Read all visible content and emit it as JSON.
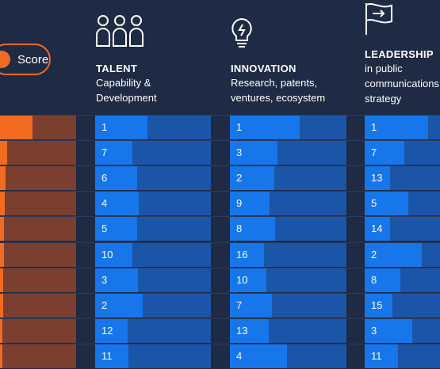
{
  "score": {
    "label": "Score"
  },
  "columns": [
    {
      "id": "talent",
      "icon": "people-group-icon",
      "title": "TALENT",
      "subtitle": [
        "Capability &",
        "Development"
      ]
    },
    {
      "id": "innovation",
      "icon": "lightbulb-icon",
      "title": "INNOVATION",
      "subtitle": [
        "Research, patents,",
        "ventures, ecosystem"
      ]
    },
    {
      "id": "leadership",
      "icon": "flag-icon",
      "title": "LEADERSHIP",
      "subtitle": [
        "in public",
        "communications",
        "strategy"
      ]
    }
  ],
  "rows": [
    {
      "score_fill": 0.43,
      "ranks": [
        "1",
        "1",
        "1"
      ],
      "bars": [
        0.45,
        0.6,
        0.55
      ]
    },
    {
      "score_fill": 0.09,
      "ranks": [
        "7",
        "3",
        "7"
      ],
      "bars": [
        0.32,
        0.41,
        0.34
      ]
    },
    {
      "score_fill": 0.07,
      "ranks": [
        "6",
        "2",
        "13"
      ],
      "bars": [
        0.36,
        0.38,
        0.22
      ]
    },
    {
      "score_fill": 0.06,
      "ranks": [
        "4",
        "9",
        "5"
      ],
      "bars": [
        0.38,
        0.34,
        0.38
      ]
    },
    {
      "score_fill": 0.05,
      "ranks": [
        "5",
        "8",
        "14"
      ],
      "bars": [
        0.36,
        0.39,
        0.22
      ]
    },
    {
      "score_fill": 0.05,
      "ranks": [
        "10",
        "16",
        "2"
      ],
      "bars": [
        0.32,
        0.29,
        0.49
      ]
    },
    {
      "score_fill": 0.04,
      "ranks": [
        "3",
        "10",
        "8"
      ],
      "bars": [
        0.37,
        0.31,
        0.31
      ]
    },
    {
      "score_fill": 0.04,
      "ranks": [
        "2",
        "7",
        "15"
      ],
      "bars": [
        0.41,
        0.36,
        0.24
      ]
    },
    {
      "score_fill": 0.03,
      "ranks": [
        "12",
        "13",
        "3"
      ],
      "bars": [
        0.28,
        0.33,
        0.41
      ]
    },
    {
      "score_fill": 0.03,
      "ranks": [
        "11",
        "4",
        "11"
      ],
      "bars": [
        0.29,
        0.49,
        0.29
      ]
    }
  ],
  "colors": {
    "background": "#1f2a44",
    "score_accent": "#f26b21",
    "score_track": "#7a3f2f",
    "bar_track": "#1b55a8",
    "bar_fill": "#1676ea"
  }
}
